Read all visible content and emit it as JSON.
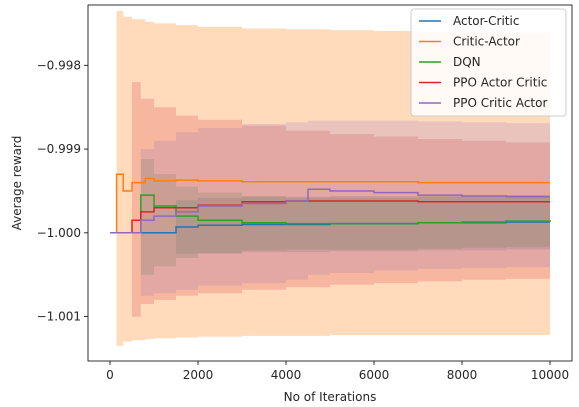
{
  "chart_data": {
    "type": "line",
    "title": "",
    "xlabel": "No of Iterations",
    "ylabel": "Average reward",
    "xlim": [
      -500,
      10500
    ],
    "ylim": [
      -1.00153,
      -0.99728
    ],
    "xticks": [
      0,
      2000,
      4000,
      6000,
      8000,
      10000
    ],
    "xtick_labels": [
      "0",
      "2000",
      "4000",
      "6000",
      "8000",
      "10000"
    ],
    "yticks": [
      -1.001,
      -1.0,
      -0.999,
      -0.998
    ],
    "ytick_labels": [
      "−1.001",
      "−1.000",
      "−0.999",
      "−0.998"
    ],
    "grid": false,
    "legend_position": "top-right",
    "shaded_band": "mean ± std per series",
    "series": [
      {
        "name": "Actor-Critic",
        "color": "#1f77b4",
        "x": [
          0,
          1200,
          1500,
          2000,
          3000,
          4000,
          5000,
          6000,
          7000,
          8000,
          9000,
          10000
        ],
        "y": [
          -1.0,
          -1.0,
          -0.99993,
          -0.99991,
          -0.9999,
          -0.9999,
          -0.99989,
          -0.99989,
          -0.99988,
          -0.99988,
          -0.99987,
          -0.99987
        ],
        "upper": [
          -1.0,
          -1.0,
          -0.99961,
          -0.99958,
          -0.99957,
          -0.99957,
          -0.99956,
          -0.99956,
          -0.99956,
          -0.99956,
          -0.99955,
          -0.99955
        ],
        "lower": [
          -1.0,
          -1.0,
          -1.00025,
          -1.00024,
          -1.00023,
          -1.00023,
          -1.00022,
          -1.00022,
          -1.00021,
          -1.00021,
          -1.0002,
          -1.0002
        ]
      },
      {
        "name": "Critic-Actor",
        "color": "#ff7f0e",
        "x": [
          0,
          150,
          300,
          500,
          800,
          1000,
          1500,
          2000,
          3000,
          4000,
          5000,
          6000,
          7000,
          8000,
          9000,
          10000
        ],
        "y": [
          -1.0,
          -0.9993,
          -0.9995,
          -0.9994,
          -0.99935,
          -0.99938,
          -0.99937,
          -0.99938,
          -0.99939,
          -0.99939,
          -0.99939,
          -0.99939,
          -0.9994,
          -0.9994,
          -0.9994,
          -0.9994
        ],
        "upper": [
          -1.0,
          -0.99735,
          -0.99742,
          -0.99745,
          -0.99748,
          -0.9975,
          -0.99752,
          -0.99754,
          -0.99756,
          -0.99757,
          -0.99758,
          -0.99759,
          -0.9976,
          -0.9976,
          -0.99761,
          -0.99761
        ],
        "lower": [
          -1.0,
          -1.00135,
          -1.0013,
          -1.00128,
          -1.00127,
          -1.00126,
          -1.00125,
          -1.00124,
          -1.00123,
          -1.00123,
          -1.00122,
          -1.00122,
          -1.00122,
          -1.00122,
          -1.00122,
          -1.00122
        ]
      },
      {
        "name": "DQN",
        "color": "#2ca02c",
        "x": [
          0,
          650,
          700,
          1000,
          1500,
          2000,
          3000,
          4000,
          5000,
          6000,
          7000,
          8000,
          9000,
          10000
        ],
        "y": [
          -1.0,
          -1.0,
          -0.99955,
          -0.99968,
          -0.9998,
          -0.99985,
          -0.99988,
          -0.99989,
          -0.99989,
          -0.99989,
          -0.99988,
          -0.99987,
          -0.99986,
          -0.99985
        ],
        "upper": [
          -1.0,
          -1.0,
          -0.99912,
          -0.9993,
          -0.99945,
          -0.99952,
          -0.99956,
          -0.99958,
          -0.99958,
          -0.99958,
          -0.99957,
          -0.99956,
          -0.99955,
          -0.99954
        ],
        "lower": [
          -1.0,
          -1.0,
          -1.0005,
          -1.0004,
          -1.0003,
          -1.00025,
          -1.00021,
          -1.0002,
          -1.0002,
          -1.0002,
          -1.00019,
          -1.00018,
          -1.00017,
          -1.00016
        ]
      },
      {
        "name": "PPO Actor Critic",
        "color": "#d62728",
        "x": [
          0,
          450,
          500,
          700,
          1000,
          1500,
          2000,
          3000,
          4000,
          5000,
          6000,
          7000,
          8000,
          9000,
          10000
        ],
        "y": [
          -1.0,
          -1.0,
          -0.99985,
          -0.99975,
          -0.9997,
          -0.9997,
          -0.99967,
          -0.99963,
          -0.99962,
          -0.99962,
          -0.99962,
          -0.99963,
          -0.99963,
          -0.99963,
          -0.99963
        ],
        "upper": [
          -1.0,
          -1.0,
          -0.9982,
          -0.9984,
          -0.9985,
          -0.9986,
          -0.99865,
          -0.99872,
          -0.99878,
          -0.99882,
          -0.99885,
          -0.99888,
          -0.9989,
          -0.99892,
          -0.99893
        ],
        "lower": [
          -1.0,
          -1.0,
          -1.001,
          -1.00085,
          -1.0008,
          -1.00075,
          -1.00072,
          -1.00068,
          -1.00065,
          -1.00062,
          -1.0006,
          -1.00058,
          -1.00056,
          -1.00055,
          -1.00054
        ]
      },
      {
        "name": "PPO Critic Actor",
        "color": "#9467bd",
        "x": [
          0,
          600,
          700,
          1000,
          1500,
          2000,
          3000,
          4000,
          4500,
          5000,
          6000,
          7000,
          8000,
          9000,
          10000
        ],
        "y": [
          -1.0,
          -1.0,
          -0.99985,
          -0.9998,
          -0.99975,
          -0.99968,
          -0.99965,
          -0.99962,
          -0.99948,
          -0.9995,
          -0.99952,
          -0.99955,
          -0.99956,
          -0.99957,
          -0.99957
        ],
        "upper": [
          -1.0,
          -1.0,
          -0.999,
          -0.9989,
          -0.9988,
          -0.99875,
          -0.9987,
          -0.99868,
          -0.99866,
          -0.99866,
          -0.99866,
          -0.99867,
          -0.99868,
          -0.99869,
          -0.9987
        ],
        "lower": [
          -1.0,
          -1.0,
          -1.00075,
          -1.00072,
          -1.00068,
          -1.00063,
          -1.0006,
          -1.00056,
          -1.0005,
          -1.00048,
          -1.00045,
          -1.00043,
          -1.00042,
          -1.00041,
          -1.0004
        ]
      }
    ]
  }
}
